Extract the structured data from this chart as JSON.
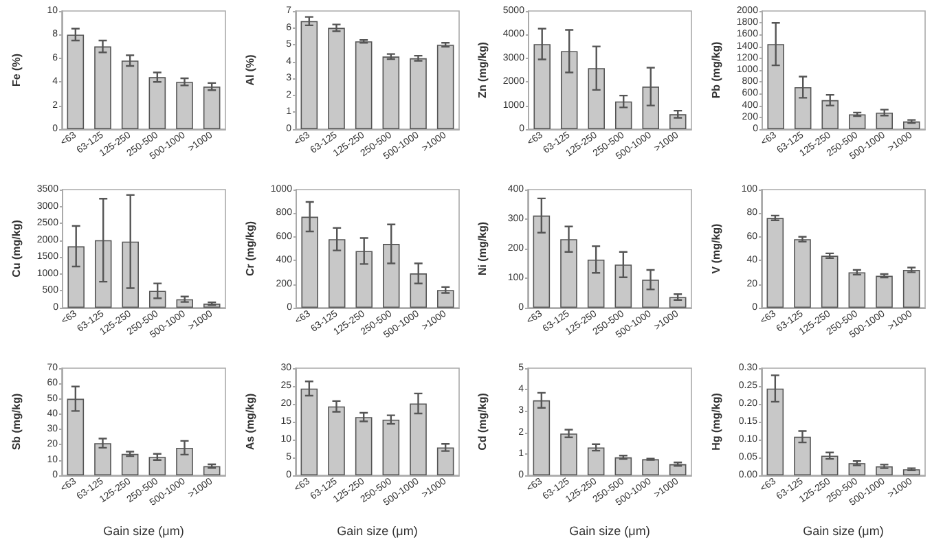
{
  "chart_data": [
    {
      "type": "bar",
      "ylabel": "Fe (%)",
      "categories": [
        "<63",
        "63-125",
        "125-250",
        "250-500",
        "500-1000",
        ">1000"
      ],
      "values": [
        8.0,
        7.0,
        5.8,
        4.4,
        4.0,
        3.6
      ],
      "errors": [
        0.5,
        0.5,
        0.45,
        0.4,
        0.3,
        0.3
      ],
      "color": "#c8c8c8",
      "ylim": [
        0,
        10
      ],
      "yticks": [
        0,
        2,
        4,
        6,
        8,
        10
      ],
      "grid": false
    },
    {
      "type": "bar",
      "ylabel": "Al (%)",
      "categories": [
        "<63",
        "63-125",
        "125-250",
        "250-500",
        "500-1000",
        ">1000"
      ],
      "values": [
        6.4,
        6.0,
        5.2,
        4.3,
        4.2,
        5.0
      ],
      "errors": [
        0.25,
        0.2,
        0.08,
        0.15,
        0.15,
        0.12
      ],
      "color": "#c8c8c8",
      "ylim": [
        0,
        7
      ],
      "yticks": [
        0,
        1,
        2,
        3,
        4,
        5,
        6,
        7
      ],
      "grid": false
    },
    {
      "type": "bar",
      "ylabel": "Zn (mg/kg)",
      "categories": [
        "<63",
        "63-125",
        "125-250",
        "250-500",
        "500-1000",
        ">1000"
      ],
      "values": [
        3600,
        3300,
        2580,
        1170,
        1800,
        630
      ],
      "errors": [
        650,
        900,
        920,
        250,
        800,
        150
      ],
      "color": "#c8c8c8",
      "ylim": [
        0,
        5000
      ],
      "yticks": [
        0,
        1000,
        2000,
        3000,
        4000,
        5000
      ],
      "grid": false
    },
    {
      "type": "bar",
      "ylabel": "Pb (mg/kg)",
      "categories": [
        "<63",
        "63-125",
        "125-250",
        "250-500",
        "500-1000",
        ">1000"
      ],
      "values": [
        1440,
        710,
        490,
        250,
        280,
        130
      ],
      "errors": [
        360,
        180,
        90,
        30,
        50,
        25
      ],
      "color": "#c8c8c8",
      "ylim": [
        0,
        2000
      ],
      "yticks": [
        0,
        200,
        400,
        600,
        800,
        1000,
        1200,
        1400,
        1600,
        1800,
        2000
      ],
      "grid": false
    },
    {
      "type": "bar",
      "ylabel": "Cu (mg/kg)",
      "categories": [
        "<63",
        "63-125",
        "125-250",
        "250-500",
        "500-1000",
        ">1000"
      ],
      "values": [
        1820,
        2000,
        1960,
        500,
        250,
        120
      ],
      "errors": [
        600,
        1230,
        1380,
        220,
        80,
        40
      ],
      "color": "#c8c8c8",
      "ylim": [
        0,
        3500
      ],
      "yticks": [
        0,
        500,
        1000,
        1500,
        2000,
        2500,
        3000,
        3500
      ],
      "grid": false
    },
    {
      "type": "bar",
      "ylabel": "Cr (mg/kg)",
      "categories": [
        "<63",
        "63-125",
        "125-250",
        "250-500",
        "500-1000",
        ">1000"
      ],
      "values": [
        770,
        580,
        480,
        540,
        290,
        150
      ],
      "errors": [
        125,
        95,
        110,
        165,
        85,
        25
      ],
      "color": "#c8c8c8",
      "ylim": [
        0,
        1000
      ],
      "yticks": [
        0,
        200,
        400,
        600,
        800,
        1000
      ],
      "grid": false
    },
    {
      "type": "bar",
      "ylabel": "Ni (mg/kg)",
      "categories": [
        "<63",
        "63-125",
        "125-250",
        "250-500",
        "500-1000",
        ">1000"
      ],
      "values": [
        312,
        232,
        163,
        146,
        95,
        36
      ],
      "errors": [
        58,
        43,
        45,
        43,
        33,
        10
      ],
      "color": "#c8c8c8",
      "ylim": [
        0,
        400
      ],
      "yticks": [
        0,
        100,
        200,
        300,
        400
      ],
      "grid": false
    },
    {
      "type": "bar",
      "ylabel": "V (mg/kg)",
      "categories": [
        "<63",
        "63-125",
        "125-250",
        "250-500",
        "500-1000",
        ">1000"
      ],
      "values": [
        76,
        58,
        44,
        30,
        27,
        32
      ],
      "errors": [
        2,
        2,
        2,
        2,
        1.5,
        2
      ],
      "color": "#c8c8c8",
      "ylim": [
        0,
        100
      ],
      "yticks": [
        0,
        20,
        40,
        60,
        80,
        100
      ],
      "grid": false
    },
    {
      "type": "bar",
      "ylabel": "Sb (mg/kg)",
      "xlabel": "Gain size (μm)",
      "categories": [
        "<63",
        "63-125",
        "125-250",
        "250-500",
        "500-1000",
        ">1000"
      ],
      "values": [
        50,
        21,
        14,
        12,
        18,
        6
      ],
      "errors": [
        8,
        3,
        1.5,
        2,
        4.5,
        1.2
      ],
      "color": "#c8c8c8",
      "ylim": [
        0,
        70
      ],
      "yticks": [
        0,
        10,
        20,
        30,
        40,
        50,
        60,
        70
      ],
      "grid": false
    },
    {
      "type": "bar",
      "ylabel": "As (mg/kg)",
      "xlabel": "Gain size (μm)",
      "categories": [
        "<63",
        "63-125",
        "125-250",
        "250-500",
        "500-1000",
        ">1000"
      ],
      "values": [
        24.3,
        19.3,
        16.3,
        15.6,
        20.1,
        7.8
      ],
      "errors": [
        2,
        1.5,
        1.2,
        1.2,
        2.8,
        1
      ],
      "color": "#c8c8c8",
      "ylim": [
        0,
        30
      ],
      "yticks": [
        0,
        5,
        10,
        15,
        20,
        25,
        30
      ],
      "grid": false
    },
    {
      "type": "bar",
      "ylabel": "Cd (mg/kg)",
      "xlabel": "Gain size (μm)",
      "categories": [
        "<63",
        "63-125",
        "125-250",
        "250-500",
        "500-1000",
        ">1000"
      ],
      "values": [
        3.5,
        1.95,
        1.3,
        0.84,
        0.75,
        0.52
      ],
      "errors": [
        0.35,
        0.18,
        0.15,
        0.08,
        0.03,
        0.08
      ],
      "color": "#c8c8c8",
      "ylim": [
        0,
        5
      ],
      "yticks": [
        0,
        1,
        2,
        3,
        4,
        5
      ],
      "grid": false
    },
    {
      "type": "bar",
      "ylabel": "Hg (mg/kg)",
      "xlabel": "Gain size (μm)",
      "categories": [
        "<63",
        "63-125",
        "125-250",
        "250-500",
        "500-1000",
        ">1000"
      ],
      "values": [
        0.243,
        0.108,
        0.055,
        0.034,
        0.025,
        0.017
      ],
      "errors": [
        0.037,
        0.016,
        0.009,
        0.006,
        0.005,
        0.003
      ],
      "color": "#c8c8c8",
      "ylim": [
        0,
        0.3
      ],
      "yticks": [
        {
          "value": 0,
          "label": "0.00"
        },
        {
          "value": 0.05,
          "label": "0.05"
        },
        {
          "value": 0.1,
          "label": "0.10"
        },
        {
          "value": 0.15,
          "label": "0.15"
        },
        {
          "value": 0.2,
          "label": "0.20"
        },
        {
          "value": 0.25,
          "label": "0.25"
        },
        {
          "value": 0.3,
          "label": "0.30"
        }
      ],
      "grid": false
    }
  ]
}
